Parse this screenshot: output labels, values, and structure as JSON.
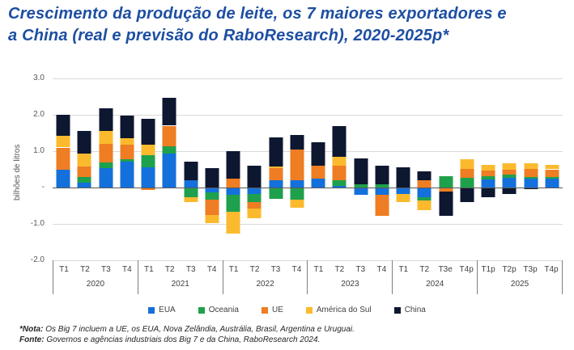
{
  "title": {
    "line1": "Crescimento da produção de leite, os 7 maiores exportadores e",
    "line2": "a China (real e previsão do RaboResearch), 2020-2025p*"
  },
  "chart_data": {
    "type": "bar",
    "stacked": true,
    "grid": true,
    "legend_position": "bottom",
    "ylabel": "bilhões de litros",
    "ylim": [
      -2.0,
      3.0
    ],
    "yticks": [
      {
        "value": 3.0,
        "label": "3.0"
      },
      {
        "value": 2.0,
        "label": "2.0"
      },
      {
        "value": 1.0,
        "label": "1.0"
      },
      {
        "value": 0,
        "label": "-"
      },
      {
        "value": -1.0,
        "label": "-1.0"
      },
      {
        "value": -2.0,
        "label": "-2.0"
      }
    ],
    "series": [
      {
        "name": "EUA",
        "color": "#1470db"
      },
      {
        "name": "Oceania",
        "color": "#1fa04c"
      },
      {
        "name": "UE",
        "color": "#ee7d23"
      },
      {
        "name": "América do Sul",
        "color": "#fbba2e"
      },
      {
        "name": "China",
        "color": "#0d1730"
      }
    ],
    "groups": [
      {
        "year": "2020",
        "quarters": [
          "T1",
          "T2",
          "T3",
          "T4"
        ],
        "values": [
          [
            0.5,
            0.0,
            0.6,
            0.32,
            0.58
          ],
          [
            0.14,
            0.14,
            0.3,
            0.35,
            0.62
          ],
          [
            0.53,
            0.16,
            0.5,
            0.36,
            0.62
          ],
          [
            0.72,
            0.05,
            0.4,
            0.19,
            0.62
          ]
        ]
      },
      {
        "year": "2021",
        "quarters": [
          "T1",
          "T2",
          "T3",
          "T4"
        ],
        "values": [
          [
            0.55,
            0.33,
            -0.06,
            0.3,
            0.7
          ],
          [
            0.93,
            0.21,
            0.56,
            0.0,
            0.76
          ],
          [
            0.2,
            -0.26,
            0.0,
            -0.15,
            0.51
          ],
          [
            -0.14,
            -0.2,
            -0.42,
            -0.22,
            0.53
          ]
        ]
      },
      {
        "year": "2022",
        "quarters": [
          "T1",
          "T2",
          "T3",
          "T4"
        ],
        "values": [
          [
            -0.19,
            -0.48,
            0.24,
            -0.6,
            0.76
          ],
          [
            -0.18,
            -0.23,
            -0.16,
            -0.28,
            0.6
          ],
          [
            0.2,
            -0.3,
            0.33,
            0.04,
            0.8
          ],
          [
            0.19,
            -0.33,
            0.85,
            -0.23,
            0.41
          ]
        ]
      },
      {
        "year": "2023",
        "quarters": [
          "T1",
          "T2",
          "T3",
          "T4"
        ],
        "values": [
          [
            0.24,
            0.0,
            0.37,
            0.0,
            0.63
          ],
          [
            0.04,
            0.15,
            0.41,
            0.24,
            0.85
          ],
          [
            -0.19,
            0.09,
            0.0,
            0.0,
            0.71
          ],
          [
            -0.19,
            0.1,
            -0.58,
            0.0,
            0.5
          ]
        ]
      },
      {
        "year": "2024",
        "quarters": [
          "T1",
          "T2",
          "T3e",
          "T4p"
        ],
        "values": [
          [
            -0.18,
            0.0,
            0.0,
            -0.22,
            0.55
          ],
          [
            -0.26,
            -0.09,
            0.2,
            -0.27,
            0.24
          ],
          [
            0.0,
            0.31,
            -0.1,
            0.0,
            -0.67
          ],
          [
            0.0,
            0.26,
            0.26,
            0.26,
            -0.41
          ]
        ]
      },
      {
        "year": "2025",
        "quarters": [
          "T1p",
          "T2p",
          "T3p",
          "T4p"
        ],
        "values": [
          [
            0.22,
            0.1,
            0.15,
            0.15,
            -0.27
          ],
          [
            0.27,
            0.09,
            0.13,
            0.18,
            -0.18
          ],
          [
            0.24,
            0.05,
            0.22,
            0.15,
            -0.05
          ],
          [
            0.25,
            0.04,
            0.21,
            0.13,
            -0.02
          ]
        ]
      }
    ]
  },
  "notes": [
    {
      "label": "*Nota:",
      "text": " Os Big 7 incluem a UE, os EUA, Nova Zelândia, Austrália, Brasil, Argentina e Uruguai."
    },
    {
      "label": "Fonte:",
      "text": " Governos e agências industriais dos Big 7 e da China, RaboResearch 2024."
    }
  ]
}
